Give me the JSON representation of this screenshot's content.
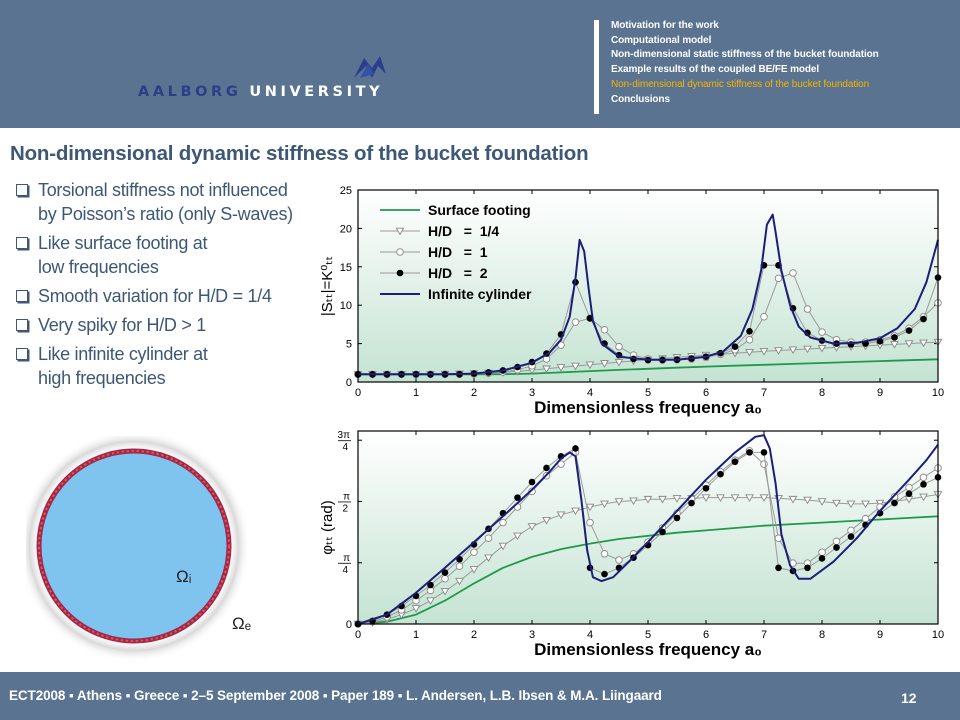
{
  "header": {
    "logo": {
      "text_part1": "AALBORG",
      "text_part2": "UNIVERSITY"
    },
    "nav": [
      {
        "label": "Motivation for the work",
        "active": false
      },
      {
        "label": "Computational model",
        "active": false
      },
      {
        "label": "Non-dimensional static stiffness of the bucket foundation",
        "active": false
      },
      {
        "label": "Example results of the coupled BE/FE model",
        "active": false
      },
      {
        "label": "Non-dimensional dynamic stiffness of the bucket foundation",
        "active": true
      },
      {
        "label": "Conclusions",
        "active": false
      }
    ]
  },
  "slide": {
    "title": "Non-dimensional dynamic stiffness of the bucket foundation",
    "bullets": [
      [
        "Torsional stiffness not influenced",
        "by Poisson’s ratio (only S-waves)"
      ],
      [
        "Like surface footing at",
        "low frequencies"
      ],
      [
        "Smooth variation for H/D = 1/4"
      ],
      [
        "Very spiky for H/D > 1"
      ],
      [
        "Like infinite cylinder at",
        "high frequencies"
      ]
    ]
  },
  "diagram": {
    "inner_label": "Ωᵢ",
    "outer_label": "Ωₑ"
  },
  "footer": {
    "text": "ECT2008 ▪ Athens ▪ Greece ▪ 2–5 September 2008 ▪ Paper 189 ▪ L. Andersen, L.B. Ibsen & M.A. Liingaard",
    "page": "12"
  },
  "colors": {
    "header_bg": "#5a7391",
    "title": "#3c5876",
    "nav_active": "#f4b400",
    "surface": "#1f9a4a",
    "cylinder": "#1c1f7a",
    "plot_bg_top": "#ffffff",
    "plot_bg_bottom": "#c4e3d2"
  },
  "chart_data": [
    {
      "type": "line",
      "xlabel": "Dimensionless frequency a₀",
      "ylabel": "|Sₜₜ|=K⁰ₜₜ",
      "xlim": [
        0,
        10
      ],
      "ylim": [
        0,
        25
      ],
      "xticks": [
        "0",
        "1",
        "2",
        "3",
        "4",
        "5",
        "6",
        "7",
        "8",
        "9",
        "10"
      ],
      "yticks": [
        "0",
        "5",
        "10",
        "15",
        "20",
        "25"
      ],
      "legend_position": "top-left",
      "series": [
        {
          "name": "Surface footing",
          "style": "solid-green",
          "x": [
            0,
            0.5,
            1,
            1.5,
            2,
            2.5,
            3,
            3.5,
            4,
            4.5,
            5,
            5.5,
            6,
            6.5,
            7,
            7.5,
            8,
            8.5,
            9,
            9.5,
            10
          ],
          "y": [
            1.0,
            1.0,
            1.0,
            1.0,
            1.0,
            1.02,
            1.1,
            1.25,
            1.42,
            1.58,
            1.72,
            1.86,
            2.0,
            2.12,
            2.24,
            2.36,
            2.48,
            2.6,
            2.72,
            2.84,
            2.95
          ]
        },
        {
          "name": "H/D   =  1/4",
          "style": "triangle",
          "x": [
            0,
            0.25,
            0.5,
            0.75,
            1,
            1.25,
            1.5,
            1.75,
            2,
            2.25,
            2.5,
            2.75,
            3,
            3.25,
            3.5,
            3.75,
            4,
            4.25,
            4.5,
            4.75,
            5,
            5.25,
            5.5,
            5.75,
            6,
            6.25,
            6.5,
            6.75,
            7,
            7.25,
            7.5,
            7.75,
            8,
            8.25,
            8.5,
            8.75,
            9,
            9.25,
            9.5,
            9.75,
            10
          ],
          "y": [
            1.0,
            1.0,
            1.0,
            1.0,
            1.0,
            1.0,
            1.02,
            1.05,
            1.1,
            1.15,
            1.25,
            1.38,
            1.55,
            1.72,
            1.9,
            2.08,
            2.25,
            2.42,
            2.58,
            2.75,
            2.9,
            3.05,
            3.2,
            3.35,
            3.5,
            3.62,
            3.75,
            3.88,
            4.0,
            4.1,
            4.2,
            4.3,
            4.4,
            4.5,
            4.6,
            4.7,
            4.8,
            4.9,
            5.0,
            5.1,
            5.2
          ]
        },
        {
          "name": "H/D   =  1",
          "style": "open-circle",
          "x": [
            0,
            0.25,
            0.5,
            0.75,
            1,
            1.25,
            1.5,
            1.75,
            2,
            2.25,
            2.5,
            2.75,
            3,
            3.25,
            3.5,
            3.75,
            4,
            4.25,
            4.5,
            4.75,
            5,
            5.25,
            5.5,
            5.75,
            6,
            6.25,
            6.5,
            6.75,
            7,
            7.25,
            7.5,
            7.75,
            8,
            8.25,
            8.5,
            8.75,
            9,
            9.25,
            9.5,
            9.75,
            10
          ],
          "y": [
            1.0,
            1.0,
            1.0,
            1.0,
            1.0,
            1.0,
            1.0,
            1.0,
            1.05,
            1.15,
            1.3,
            1.6,
            2.1,
            3.0,
            4.8,
            7.8,
            8.3,
            6.8,
            4.6,
            3.5,
            3.0,
            2.9,
            2.9,
            3.0,
            3.2,
            3.6,
            4.2,
            5.5,
            8.5,
            13.5,
            14.2,
            9.5,
            6.5,
            5.5,
            5.2,
            5.2,
            5.5,
            6.0,
            7.0,
            8.5,
            10.3
          ]
        },
        {
          "name": "H/D   =  2",
          "style": "filled-circle",
          "x": [
            0,
            0.25,
            0.5,
            0.75,
            1,
            1.25,
            1.5,
            1.75,
            2,
            2.25,
            2.5,
            2.75,
            3,
            3.25,
            3.5,
            3.75,
            4,
            4.25,
            4.5,
            4.75,
            5,
            5.25,
            5.5,
            5.75,
            6,
            6.25,
            6.5,
            6.75,
            7,
            7.25,
            7.5,
            7.75,
            8,
            8.25,
            8.5,
            8.75,
            9,
            9.25,
            9.5,
            9.75,
            10
          ],
          "y": [
            1.0,
            1.0,
            1.0,
            1.0,
            1.0,
            1.0,
            1.0,
            1.02,
            1.1,
            1.25,
            1.5,
            1.95,
            2.6,
            3.7,
            6.2,
            13.0,
            8.3,
            5.0,
            3.5,
            3.0,
            2.85,
            2.85,
            2.9,
            3.05,
            3.3,
            3.75,
            4.6,
            6.6,
            15.2,
            15.2,
            9.6,
            6.4,
            5.4,
            5.0,
            4.9,
            5.0,
            5.3,
            5.8,
            6.7,
            8.2,
            13.6
          ]
        },
        {
          "name": "Infinite cylinder",
          "style": "solid-navy",
          "x": [
            0,
            0.5,
            1,
            1.5,
            2,
            2.5,
            3,
            3.3,
            3.5,
            3.65,
            3.75,
            3.82,
            3.9,
            3.98,
            4.05,
            4.2,
            4.5,
            5,
            5.5,
            6,
            6.3,
            6.6,
            6.8,
            6.95,
            7.05,
            7.15,
            7.2,
            7.3,
            7.45,
            7.6,
            7.8,
            8.2,
            8.6,
            9,
            9.3,
            9.6,
            9.8,
            10
          ],
          "y": [
            1.0,
            1.0,
            1.0,
            1.0,
            1.1,
            1.5,
            2.5,
            3.8,
            5.5,
            8.5,
            13.5,
            18.5,
            17.0,
            12.0,
            8.0,
            5.0,
            3.3,
            2.9,
            2.9,
            3.3,
            4.0,
            6.0,
            9.5,
            14.5,
            20.5,
            21.8,
            19.5,
            14.5,
            10.0,
            7.2,
            5.8,
            5.0,
            5.1,
            5.7,
            7.0,
            9.5,
            13.0,
            18.5
          ]
        }
      ]
    },
    {
      "type": "line",
      "xlabel": "Dimensionless frequency a₀",
      "ylabel": "φₜₜ  (rad)",
      "xlim": [
        0,
        10
      ],
      "ylim": [
        0,
        2.474
      ],
      "xticks": [
        "0",
        "1",
        "2",
        "3",
        "4",
        "5",
        "6",
        "7",
        "8",
        "9",
        "10"
      ],
      "ytick_labels": [
        "0",
        "π/4",
        "π/2",
        "3π/4"
      ],
      "ytick_values": [
        0,
        0.785,
        1.571,
        2.356
      ],
      "series": [
        {
          "name": "Surface footing",
          "style": "solid-green",
          "x": [
            0,
            0.5,
            1,
            1.5,
            2,
            2.5,
            3,
            3.5,
            4,
            4.5,
            5,
            5.5,
            6,
            6.5,
            7,
            7.5,
            8,
            8.5,
            9,
            9.5,
            10
          ],
          "y": [
            0.0,
            0.03,
            0.12,
            0.3,
            0.52,
            0.72,
            0.86,
            0.96,
            1.03,
            1.09,
            1.13,
            1.17,
            1.2,
            1.23,
            1.26,
            1.28,
            1.3,
            1.32,
            1.34,
            1.36,
            1.38
          ]
        },
        {
          "name": "H/D = 1/4",
          "style": "triangle",
          "x": [
            0,
            0.25,
            0.5,
            0.75,
            1,
            1.25,
            1.5,
            1.75,
            2,
            2.25,
            2.5,
            2.75,
            3,
            3.25,
            3.5,
            3.75,
            4,
            4.25,
            4.5,
            4.75,
            5,
            5.25,
            5.5,
            5.75,
            6,
            6.25,
            6.5,
            6.75,
            7,
            7.25,
            7.5,
            7.75,
            8,
            8.25,
            8.5,
            8.75,
            9,
            9.25,
            9.5,
            9.75,
            10
          ],
          "y": [
            0.0,
            0.02,
            0.06,
            0.12,
            0.2,
            0.3,
            0.42,
            0.55,
            0.7,
            0.85,
            1.0,
            1.13,
            1.25,
            1.33,
            1.4,
            1.45,
            1.5,
            1.54,
            1.57,
            1.58,
            1.6,
            1.6,
            1.61,
            1.61,
            1.62,
            1.62,
            1.62,
            1.62,
            1.62,
            1.61,
            1.6,
            1.59,
            1.57,
            1.55,
            1.54,
            1.54,
            1.55,
            1.57,
            1.6,
            1.63,
            1.66
          ]
        },
        {
          "name": "H/D = 1",
          "style": "open-circle",
          "x": [
            0,
            0.25,
            0.5,
            0.75,
            1,
            1.25,
            1.5,
            1.75,
            2,
            2.25,
            2.5,
            2.75,
            3,
            3.25,
            3.5,
            3.75,
            4,
            4.25,
            4.5,
            4.75,
            5,
            5.25,
            5.5,
            5.75,
            6,
            6.25,
            6.5,
            6.75,
            7,
            7.25,
            7.5,
            7.75,
            8,
            8.25,
            8.5,
            8.75,
            9,
            9.25,
            9.5,
            9.75,
            10
          ],
          "y": [
            0.0,
            0.03,
            0.09,
            0.18,
            0.3,
            0.43,
            0.58,
            0.74,
            0.92,
            1.1,
            1.3,
            1.5,
            1.7,
            1.9,
            2.05,
            2.2,
            1.3,
            0.9,
            0.82,
            0.9,
            1.05,
            1.23,
            1.42,
            1.6,
            1.78,
            1.95,
            2.1,
            2.22,
            2.05,
            1.1,
            0.78,
            0.78,
            0.92,
            1.06,
            1.2,
            1.35,
            1.5,
            1.63,
            1.75,
            1.88,
            2.0
          ]
        },
        {
          "name": "H/D = 2",
          "style": "filled-circle",
          "x": [
            0,
            0.25,
            0.5,
            0.75,
            1,
            1.25,
            1.5,
            1.75,
            2,
            2.25,
            2.5,
            2.75,
            3,
            3.25,
            3.5,
            3.75,
            4,
            4.25,
            4.5,
            4.75,
            5,
            5.25,
            5.5,
            5.75,
            6,
            6.25,
            6.5,
            6.75,
            7,
            7.25,
            7.5,
            7.75,
            8,
            8.25,
            8.5,
            8.75,
            9,
            9.25,
            9.5,
            9.75,
            10
          ],
          "y": [
            0.0,
            0.04,
            0.12,
            0.23,
            0.36,
            0.5,
            0.66,
            0.83,
            1.02,
            1.22,
            1.42,
            1.62,
            1.82,
            2.0,
            2.15,
            2.25,
            0.72,
            0.64,
            0.72,
            0.85,
            1.01,
            1.18,
            1.36,
            1.55,
            1.74,
            1.92,
            2.08,
            2.2,
            2.2,
            0.72,
            0.68,
            0.72,
            0.84,
            0.98,
            1.12,
            1.27,
            1.42,
            1.55,
            1.67,
            1.79,
            1.88
          ]
        },
        {
          "name": "Infinite cylinder",
          "style": "solid-navy",
          "x": [
            0,
            0.5,
            1,
            1.5,
            2,
            2.5,
            3,
            3.3,
            3.5,
            3.65,
            3.75,
            3.85,
            3.95,
            4.05,
            4.2,
            4.4,
            4.7,
            5,
            5.5,
            6,
            6.5,
            6.85,
            7.0,
            7.1,
            7.2,
            7.3,
            7.45,
            7.6,
            7.8,
            8.2,
            8.6,
            9,
            9.5,
            9.8,
            10
          ],
          "y": [
            0.0,
            0.12,
            0.4,
            0.72,
            1.05,
            1.38,
            1.72,
            1.95,
            2.12,
            2.2,
            2.15,
            1.6,
            0.95,
            0.6,
            0.55,
            0.6,
            0.82,
            1.05,
            1.45,
            1.85,
            2.2,
            2.4,
            2.42,
            2.25,
            1.8,
            1.15,
            0.75,
            0.58,
            0.58,
            0.8,
            1.1,
            1.45,
            1.85,
            2.1,
            2.3
          ]
        }
      ]
    }
  ]
}
